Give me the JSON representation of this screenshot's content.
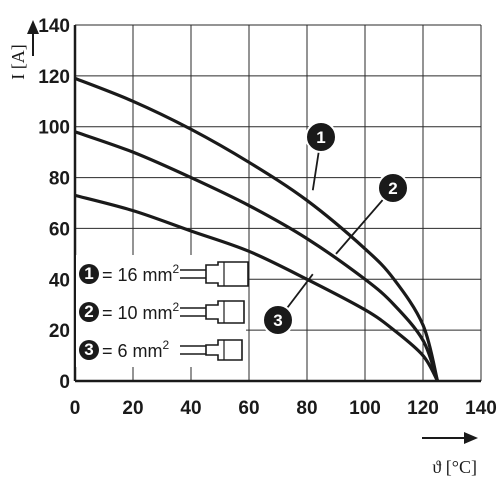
{
  "chart_data": {
    "type": "line",
    "xlabel": "ϑ [°C]",
    "ylabel": "I [A]",
    "xlim": [
      0,
      140
    ],
    "ylim": [
      0,
      140
    ],
    "xticks": [
      "0",
      "20",
      "40",
      "60",
      "80",
      "100",
      "120",
      "140"
    ],
    "yticks": [
      "0",
      "20",
      "40",
      "60",
      "80",
      "100",
      "120",
      "140"
    ],
    "grid": true,
    "series": [
      {
        "name": "1",
        "x": [
          0,
          20,
          40,
          60,
          80,
          100,
          110,
          120,
          125
        ],
        "y": [
          119,
          110,
          99,
          86,
          71,
          52,
          40,
          22,
          0
        ]
      },
      {
        "name": "2",
        "x": [
          0,
          20,
          40,
          60,
          80,
          100,
          110,
          120,
          125
        ],
        "y": [
          98,
          90,
          80,
          69,
          56,
          40,
          30,
          16,
          0
        ]
      },
      {
        "name": "3",
        "x": [
          0,
          20,
          40,
          60,
          80,
          100,
          110,
          120,
          125
        ],
        "y": [
          73,
          67,
          59,
          51,
          40,
          28,
          20,
          10,
          0
        ]
      }
    ],
    "callouts": [
      {
        "label": "1",
        "at_x": 82,
        "at_y": 75
      },
      {
        "label": "2",
        "at_x": 90,
        "at_y": 50
      },
      {
        "label": "3",
        "at_x": 82,
        "at_y": 42
      }
    ],
    "legend": [
      {
        "badge": "1",
        "text": "= 16 mm",
        "sup": "2"
      },
      {
        "badge": "2",
        "text": "= 10 mm",
        "sup": "2"
      },
      {
        "badge": "3",
        "text": "= 6 mm",
        "sup": "2"
      }
    ],
    "colors": {
      "line": "#1a1a1a",
      "grid": "#2a2a2a",
      "badge": "#1a1a1a"
    }
  }
}
